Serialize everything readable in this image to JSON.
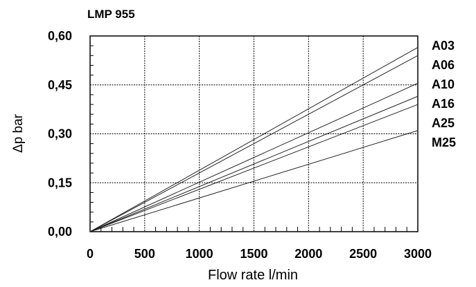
{
  "chart_data": {
    "type": "line",
    "title": "LMP 955",
    "xlabel": "Flow rate l/min",
    "ylabel": "Δp bar",
    "xlim": [
      0,
      3000
    ],
    "ylim": [
      0,
      0.6
    ],
    "x_ticks": [
      "0",
      "500",
      "1000",
      "1500",
      "2000",
      "2500",
      "3000"
    ],
    "y_ticks": [
      "0,00",
      "0,15",
      "0,30",
      "0,45",
      "0,60"
    ],
    "grid": true,
    "series": [
      {
        "name": "A03",
        "x": [
          0,
          3000
        ],
        "y": [
          0,
          0.565
        ]
      },
      {
        "name": "A06",
        "x": [
          0,
          3000
        ],
        "y": [
          0,
          0.54
        ]
      },
      {
        "name": "A10",
        "x": [
          0,
          3000
        ],
        "y": [
          0,
          0.455
        ]
      },
      {
        "name": "A16",
        "x": [
          0,
          3000
        ],
        "y": [
          0,
          0.415
        ]
      },
      {
        "name": "A25",
        "x": [
          0,
          3000
        ],
        "y": [
          0,
          0.39
        ]
      },
      {
        "name": "M25",
        "x": [
          0,
          3000
        ],
        "y": [
          0,
          0.31
        ]
      }
    ]
  }
}
